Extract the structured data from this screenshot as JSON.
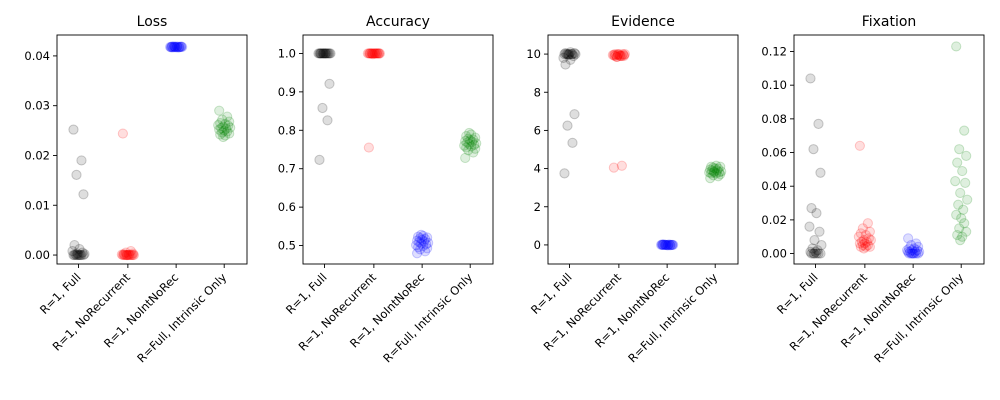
{
  "chart_data": [
    {
      "type": "scatter",
      "title": "Loss",
      "categories": [
        "R=1, Full",
        "R=1, NoRecurrent",
        "R=1, NoIntNoRec",
        "R=Full, Intrinsic Only"
      ],
      "colors": [
        "#000000",
        "#ff0000",
        "#0000ff",
        "#008000"
      ],
      "ylim": [
        -0.0018,
        0.0442
      ],
      "yticks": [
        0.0,
        0.01,
        0.02,
        0.03,
        0.04
      ],
      "ytick_labels": [
        "0.00",
        "0.01",
        "0.02",
        "0.03",
        "0.04"
      ],
      "points": [
        [
          0.0252,
          0.019,
          0.0161,
          0.0122,
          0.002,
          0.0012,
          0.0008,
          0.0005,
          0.0003,
          0.0002,
          0.0001,
          0.0,
          0.0,
          0.0,
          0.0,
          0.0,
          0.0,
          0.0,
          0.0,
          0.0
        ],
        [
          0.0244,
          0.0008,
          0.0005,
          0.0003,
          0.0002,
          0.0001,
          0.0001,
          0.0,
          0.0,
          0.0,
          0.0,
          0.0,
          0.0,
          0.0,
          0.0,
          0.0,
          0.0,
          0.0,
          0.0,
          0.0
        ],
        [
          0.0418,
          0.0418,
          0.0418,
          0.0418,
          0.0418,
          0.0418,
          0.0418,
          0.0418,
          0.0418,
          0.0418,
          0.0417,
          0.0417,
          0.0417,
          0.0417,
          0.0417,
          0.0419,
          0.0419,
          0.0419,
          0.0419,
          0.0418
        ],
        [
          0.029,
          0.0278,
          0.0272,
          0.0268,
          0.0265,
          0.0263,
          0.0261,
          0.026,
          0.0258,
          0.0256,
          0.0255,
          0.0254,
          0.0252,
          0.025,
          0.0248,
          0.0246,
          0.0244,
          0.0242,
          0.024,
          0.0237
        ]
      ]
    },
    {
      "type": "scatter",
      "title": "Accuracy",
      "categories": [
        "R=1, Full",
        "R=1, NoRecurrent",
        "R=1, NoIntNoRec",
        "R=Full, Intrinsic Only"
      ],
      "colors": [
        "#000000",
        "#ff0000",
        "#0000ff",
        "#008000"
      ],
      "ylim": [
        0.452,
        1.048
      ],
      "yticks": [
        0.5,
        0.6,
        0.7,
        0.8,
        0.9,
        1.0
      ],
      "ytick_labels": [
        "0.5",
        "0.6",
        "0.7",
        "0.8",
        "0.9",
        "1.0"
      ],
      "points": [
        [
          0.723,
          0.826,
          0.858,
          0.921,
          1.0,
          1.0,
          1.0,
          1.0,
          1.0,
          1.0,
          1.0,
          1.0,
          1.0,
          1.0,
          1.0,
          1.0,
          1.0,
          1.0,
          1.0,
          1.0
        ],
        [
          0.755,
          1.0,
          1.0,
          1.0,
          1.0,
          1.0,
          1.0,
          1.0,
          1.0,
          1.0,
          1.0,
          1.0,
          1.0,
          1.0,
          1.0,
          1.0,
          1.0,
          1.0,
          1.0,
          0.998
        ],
        [
          0.48,
          0.485,
          0.49,
          0.493,
          0.496,
          0.499,
          0.501,
          0.503,
          0.505,
          0.507,
          0.509,
          0.511,
          0.513,
          0.515,
          0.517,
          0.519,
          0.521,
          0.523,
          0.525,
          0.528
        ],
        [
          0.728,
          0.742,
          0.748,
          0.752,
          0.755,
          0.758,
          0.76,
          0.762,
          0.764,
          0.766,
          0.768,
          0.77,
          0.772,
          0.774,
          0.776,
          0.778,
          0.781,
          0.785,
          0.789,
          0.793
        ]
      ]
    },
    {
      "type": "scatter",
      "title": "Evidence",
      "categories": [
        "R=1, Full",
        "R=1, NoRecurrent",
        "R=1, NoIntNoRec",
        "R=Full, Intrinsic Only"
      ],
      "colors": [
        "#000000",
        "#ff0000",
        "#0000ff",
        "#008000"
      ],
      "ylim": [
        -1.0,
        11.0
      ],
      "yticks": [
        0,
        2,
        4,
        6,
        8,
        10
      ],
      "ytick_labels": [
        "0",
        "2",
        "4",
        "6",
        "8",
        "10"
      ],
      "points": [
        [
          3.75,
          5.35,
          6.25,
          6.85,
          9.45,
          9.7,
          9.8,
          9.9,
          9.95,
          10.0,
          10.0,
          10.0,
          10.0,
          10.0,
          10.0,
          10.0,
          10.05,
          10.05,
          10.1,
          10.0
        ],
        [
          4.05,
          4.15,
          9.85,
          9.9,
          9.9,
          9.95,
          9.95,
          10.0,
          10.0,
          10.0,
          9.95,
          9.9,
          9.95,
          10.0,
          9.9,
          9.85,
          9.95,
          10.0,
          9.9,
          9.95
        ],
        [
          0.0,
          0.0,
          0.0,
          0.0,
          0.0,
          0.0,
          0.0,
          0.0,
          0.0,
          0.0,
          0.02,
          0.02,
          0.02,
          -0.02,
          -0.02,
          0.0,
          0.0,
          0.01,
          -0.01,
          0.0
        ],
        [
          3.5,
          3.6,
          3.65,
          3.7,
          3.75,
          3.75,
          3.8,
          3.8,
          3.85,
          3.85,
          3.9,
          3.9,
          3.95,
          4.0,
          4.0,
          4.05,
          4.1,
          4.1,
          4.15,
          3.8
        ]
      ]
    },
    {
      "type": "scatter",
      "title": "Fixation",
      "categories": [
        "R=1, Full",
        "R=1, NoRecurrent",
        "R=1, NoIntNoRec",
        "R=Full, Intrinsic Only"
      ],
      "colors": [
        "#000000",
        "#ff0000",
        "#0000ff",
        "#008000"
      ],
      "ylim": [
        -0.0062,
        0.1298
      ],
      "yticks": [
        0.0,
        0.02,
        0.04,
        0.06,
        0.08,
        0.1,
        0.12
      ],
      "ytick_labels": [
        "0.00",
        "0.02",
        "0.04",
        "0.06",
        "0.08",
        "0.10",
        "0.12"
      ],
      "points": [
        [
          0.104,
          0.077,
          0.062,
          0.048,
          0.027,
          0.024,
          0.016,
          0.013,
          0.008,
          0.005,
          0.003,
          0.002,
          0.001,
          0.001,
          0.0,
          0.0,
          0.0,
          0.0,
          0.0,
          0.0
        ],
        [
          0.064,
          0.018,
          0.015,
          0.013,
          0.012,
          0.011,
          0.01,
          0.009,
          0.008,
          0.008,
          0.007,
          0.007,
          0.006,
          0.006,
          0.005,
          0.005,
          0.004,
          0.004,
          0.004,
          0.003
        ],
        [
          0.009,
          0.006,
          0.005,
          0.004,
          0.003,
          0.003,
          0.002,
          0.002,
          0.002,
          0.001,
          0.001,
          0.001,
          0.001,
          0.0,
          0.0,
          0.0,
          0.0,
          0.0,
          0.0,
          0.0
        ],
        [
          0.123,
          0.073,
          0.062,
          0.058,
          0.054,
          0.049,
          0.043,
          0.042,
          0.036,
          0.032,
          0.029,
          0.026,
          0.023,
          0.021,
          0.018,
          0.015,
          0.013,
          0.011,
          0.01,
          0.008
        ]
      ]
    }
  ]
}
